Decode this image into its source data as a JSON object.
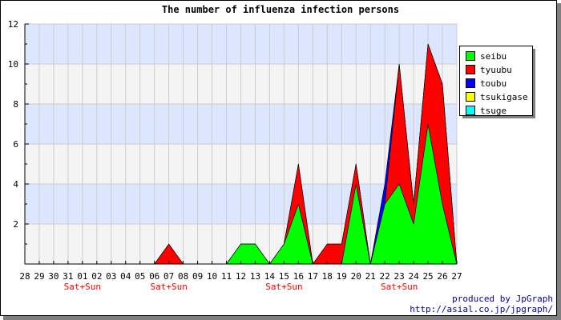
{
  "chart_data": {
    "type": "area",
    "stacked": true,
    "title": "The number of influenza infection persons",
    "xlabel": "",
    "ylabel": "",
    "ylim": [
      0,
      12
    ],
    "yticks": [
      2,
      4,
      6,
      8,
      10,
      12
    ],
    "grid": true,
    "legend_position": "top-right",
    "categories": [
      "28",
      "29",
      "30",
      "31",
      "01",
      "02",
      "03",
      "04",
      "05",
      "06",
      "07",
      "08",
      "09",
      "10",
      "11",
      "12",
      "13",
      "14",
      "15",
      "16",
      "17",
      "18",
      "19",
      "20",
      "21",
      "22",
      "23",
      "24",
      "25",
      "26",
      "27"
    ],
    "weekend_markers": [
      {
        "category": "01",
        "label": "Sat+Sun"
      },
      {
        "category": "07",
        "label": "Sat+Sun"
      },
      {
        "category": "15",
        "label": "Sat+Sun"
      },
      {
        "category": "23",
        "label": "Sat+Sun"
      }
    ],
    "series": [
      {
        "name": "seibu",
        "color": "#00ff00",
        "values": [
          0,
          0,
          0,
          0,
          0,
          0,
          0,
          0,
          0,
          0,
          0,
          0,
          0,
          0,
          0,
          1,
          1,
          0,
          1,
          3,
          0,
          0,
          0,
          4,
          0,
          3,
          4,
          2,
          7,
          3,
          0
        ]
      },
      {
        "name": "tyuubu",
        "color": "#ff0000",
        "values": [
          0,
          0,
          0,
          0,
          0,
          0,
          0,
          0,
          0,
          0,
          1,
          0,
          0,
          0,
          0,
          0,
          0,
          0,
          0,
          2,
          0,
          1,
          1,
          1,
          0,
          0,
          6,
          1,
          4,
          6,
          0
        ]
      },
      {
        "name": "toubu",
        "color": "#0000ff",
        "values": [
          0,
          0,
          0,
          0,
          0,
          0,
          0,
          0,
          0,
          0,
          0,
          0,
          0,
          0,
          0,
          0,
          0,
          0,
          0,
          0,
          0,
          0,
          0,
          0,
          0,
          1,
          0,
          0,
          0,
          0,
          0
        ]
      },
      {
        "name": "tsukigase",
        "color": "#ffff00",
        "values": [
          0,
          0,
          0,
          0,
          0,
          0,
          0,
          0,
          0,
          0,
          0,
          0,
          0,
          0,
          0,
          0,
          0,
          0,
          0,
          0,
          0,
          0,
          0,
          0,
          0,
          0,
          0,
          0,
          0,
          0,
          0
        ]
      },
      {
        "name": "tsuge",
        "color": "#00ffff",
        "values": [
          0,
          0,
          0,
          0,
          0,
          0,
          0,
          0,
          0,
          0,
          0,
          0,
          0,
          0,
          0,
          0,
          0,
          0,
          0,
          0,
          0,
          0,
          0,
          0,
          0,
          0,
          0,
          0,
          0,
          0,
          0
        ]
      }
    ],
    "footer_lines": [
      "produced by JpGraph",
      "http://asial.co.jp/jpgraph/"
    ],
    "colors": {
      "band_blue": "#dde6ff",
      "band_gray": "#f4f4f4",
      "weekend_label": "#ff0000",
      "footer_text": "#000099"
    }
  }
}
